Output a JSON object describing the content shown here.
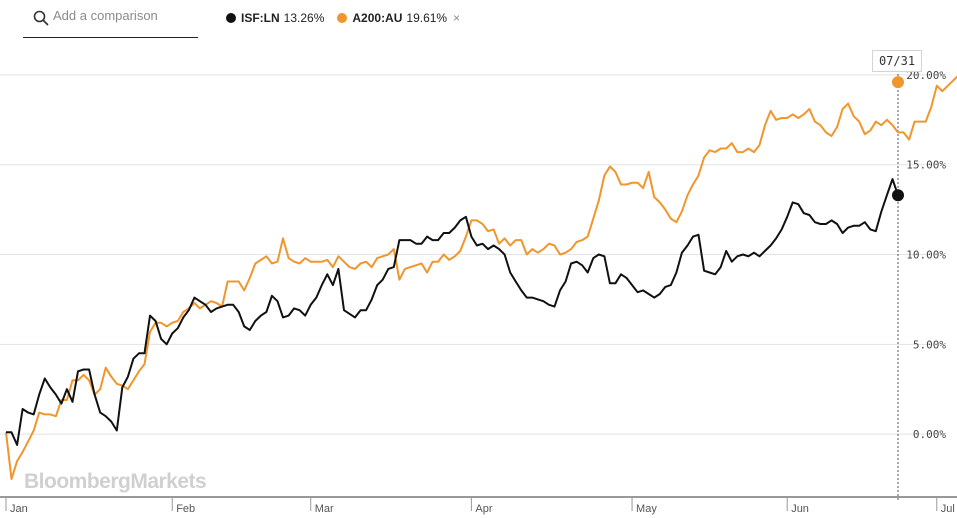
{
  "search": {
    "placeholder": "Add a comparison"
  },
  "legend": [
    {
      "ticker": "ISF:LN",
      "value": "13.26%",
      "color": "#111111"
    },
    {
      "ticker": "A200:AU",
      "value": "19.61%",
      "color": "#f0962c",
      "removable": true,
      "remove_glyph": "×"
    }
  ],
  "icons": {
    "search": "search-icon",
    "remove": "close-icon"
  },
  "date_badge": "07/31",
  "watermark": "BloombergMarkets",
  "chart_data": {
    "type": "line",
    "grid": true,
    "y_axis_position": "right",
    "ylim": [
      -3.5,
      22.5
    ],
    "y_ticks": [
      0,
      5,
      10,
      15,
      20
    ],
    "y_tick_labels": [
      "0.00%",
      "5.00%",
      "10.00%",
      "15.00%",
      "20.00%"
    ],
    "x_tick_labels": [
      "Jan",
      "Feb",
      "Mar",
      "Apr",
      "May",
      "Jun",
      "Jul"
    ],
    "x_tick_index": [
      0,
      30,
      55,
      84,
      113,
      141,
      168
    ],
    "series": [
      {
        "name": "ISF:LN",
        "color": "#111111",
        "values": [
          0.1,
          0.1,
          -0.6,
          1.4,
          1.2,
          1.1,
          2.2,
          3.1,
          2.6,
          2.2,
          1.7,
          2.5,
          1.8,
          3.5,
          3.6,
          3.6,
          2.2,
          1.2,
          1.0,
          0.7,
          0.2,
          2.6,
          3.2,
          4.2,
          4.5,
          4.5,
          6.6,
          6.3,
          5.3,
          5.0,
          5.6,
          5.9,
          6.5,
          6.9,
          7.6,
          7.4,
          7.2,
          6.8,
          7.0,
          7.1,
          7.2,
          7.2,
          6.8,
          6.0,
          5.8,
          6.3,
          6.6,
          6.8,
          7.7,
          7.4,
          6.5,
          6.6,
          7.0,
          6.9,
          6.6,
          7.2,
          7.6,
          8.3,
          8.9,
          8.3,
          9.2,
          6.9,
          6.7,
          6.5,
          6.9,
          6.9,
          7.5,
          8.3,
          8.6,
          9.2,
          9.3,
          10.8,
          10.8,
          10.8,
          10.6,
          10.6,
          11.0,
          10.8,
          10.8,
          11.2,
          11.2,
          11.5,
          11.9,
          12.1,
          11.0,
          10.5,
          10.6,
          10.3,
          10.5,
          10.3,
          10.0,
          9.0,
          8.5,
          8.0,
          7.6,
          7.6,
          7.5,
          7.4,
          7.2,
          7.1,
          8.0,
          8.5,
          9.5,
          9.6,
          9.4,
          9.0,
          9.8,
          10.0,
          9.9,
          8.4,
          8.4,
          8.9,
          8.7,
          8.3,
          7.9,
          8.0,
          7.8,
          7.6,
          7.8,
          8.2,
          8.3,
          9.0,
          10.1,
          10.5,
          11.0,
          11.1,
          9.1,
          9.0,
          8.9,
          9.3,
          10.2,
          9.6,
          9.9,
          10.0,
          9.9,
          10.1,
          9.9,
          10.2,
          10.5,
          10.9,
          11.4,
          12.1,
          12.9,
          12.8,
          12.3,
          12.2,
          11.8,
          11.7,
          11.7,
          11.9,
          11.7,
          11.2,
          11.5,
          11.6,
          11.6,
          11.8,
          11.4,
          11.3,
          12.4,
          13.3,
          14.2,
          13.3
        ]
      },
      {
        "name": "A200:AU",
        "color": "#f0962c",
        "values": [
          0.1,
          -2.5,
          -1.5,
          -1.0,
          -0.4,
          0.2,
          1.2,
          1.1,
          1.1,
          1.0,
          1.9,
          1.9,
          3.0,
          3.0,
          3.3,
          3.0,
          2.2,
          2.5,
          3.7,
          3.2,
          2.8,
          2.7,
          2.5,
          3.0,
          3.5,
          3.9,
          5.7,
          6.2,
          6.2,
          6.0,
          6.2,
          6.3,
          6.8,
          7.0,
          7.3,
          7.0,
          7.2,
          7.4,
          7.3,
          7.1,
          8.5,
          8.5,
          8.5,
          8.0,
          8.7,
          9.5,
          9.7,
          9.9,
          9.5,
          9.6,
          10.9,
          9.8,
          9.6,
          9.5,
          9.8,
          9.6,
          9.6,
          9.6,
          9.7,
          9.3,
          9.9,
          9.6,
          9.3,
          9.2,
          9.5,
          9.6,
          9.3,
          9.8,
          9.9,
          10.0,
          10.3,
          8.6,
          9.2,
          9.3,
          9.4,
          9.5,
          9.0,
          9.6,
          9.6,
          10.0,
          9.7,
          9.9,
          10.2,
          11.0,
          11.9,
          11.9,
          11.7,
          11.3,
          11.4,
          10.6,
          10.9,
          10.5,
          10.8,
          10.8,
          10.0,
          10.3,
          10.1,
          10.3,
          10.6,
          10.5,
          10.0,
          10.1,
          10.3,
          10.7,
          10.8,
          11.0,
          12.0,
          13.0,
          14.4,
          14.9,
          14.6,
          13.9,
          13.9,
          14.0,
          14.0,
          13.7,
          14.6,
          13.2,
          12.9,
          12.5,
          12.0,
          11.8,
          12.4,
          13.3,
          13.9,
          14.4,
          15.4,
          15.8,
          15.7,
          15.9,
          15.9,
          16.2,
          15.7,
          15.7,
          15.9,
          15.7,
          16.1,
          17.2,
          18.0,
          17.5,
          17.6,
          17.6,
          17.8,
          17.6,
          17.8,
          18.1,
          17.4,
          17.2,
          16.8,
          16.6,
          17.1,
          18.1,
          18.4,
          17.7,
          17.4,
          16.7,
          16.9,
          17.4,
          17.2,
          17.5,
          17.2,
          16.8,
          16.8,
          16.4,
          17.4,
          17.4,
          17.4,
          18.2,
          19.4,
          19.1,
          19.4,
          19.7,
          20.0,
          19.6
        ]
      }
    ]
  }
}
